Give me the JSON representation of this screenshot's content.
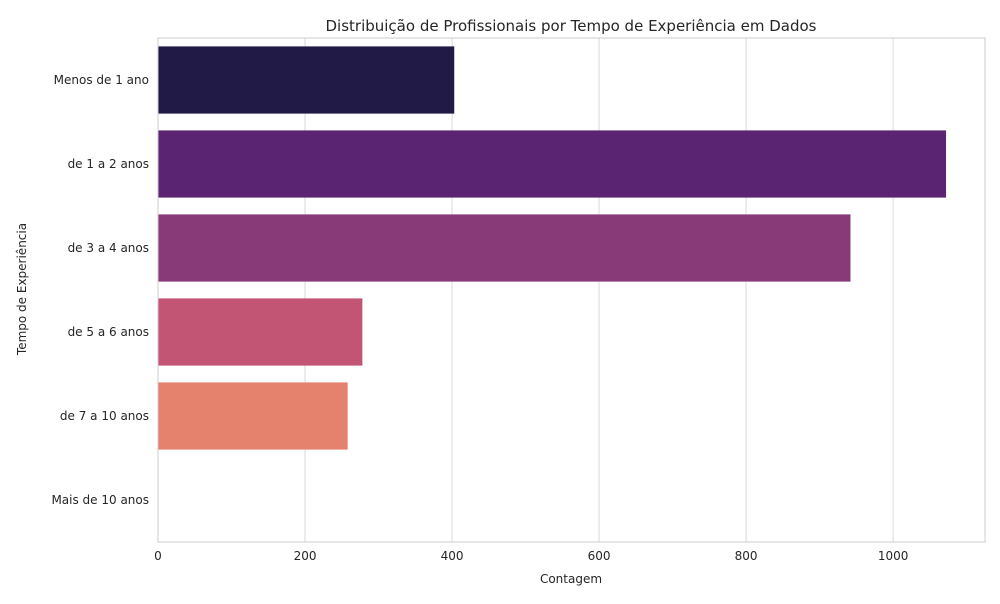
{
  "chart_data": {
    "type": "bar",
    "orientation": "horizontal",
    "title": "Distribuição de Profissionais por Tempo de Experiência em Dados",
    "xlabel": "Contagem",
    "ylabel": "Tempo de Experiência",
    "categories": [
      "Menos de 1 ano",
      "de 1 a 2 anos",
      "de 3 a 4 anos",
      "de 5 a 6 anos",
      "de 7 a 10 anos",
      "Mais de 10 anos"
    ],
    "values": [
      403,
      1072,
      942,
      278,
      258,
      0
    ],
    "colors": [
      "#221a46",
      "#5b2472",
      "#883a78",
      "#c25573",
      "#e5826d",
      "#f4b98c"
    ],
    "xlim": [
      0,
      1125
    ],
    "xticks": [
      0,
      200,
      400,
      600,
      800,
      1000
    ],
    "xtick_labels": [
      "0",
      "200",
      "400",
      "600",
      "800",
      "1000"
    ],
    "grid": true,
    "background": "#ffffff",
    "gridColor": "#d9d9d9",
    "spineColor": "#cccccc"
  }
}
